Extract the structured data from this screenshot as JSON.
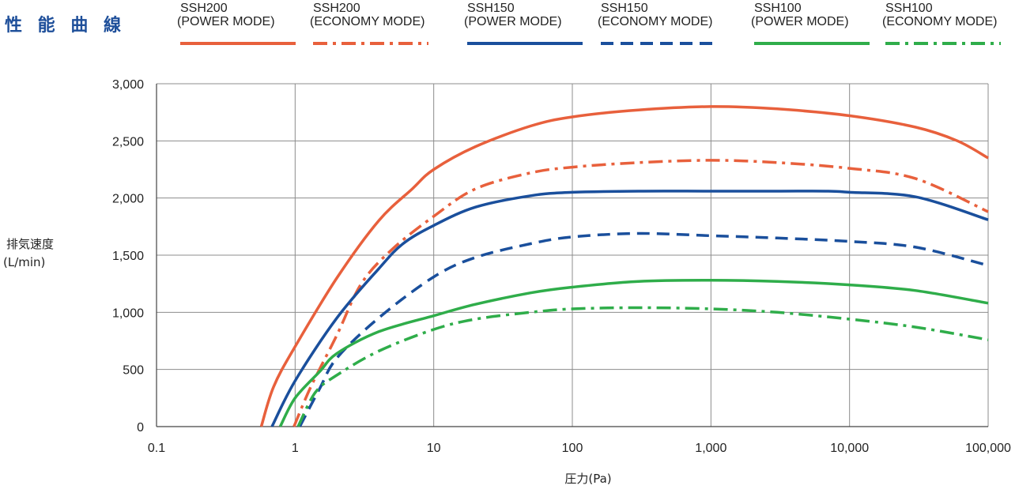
{
  "title": "性 能 曲 線",
  "chart_data": {
    "type": "line",
    "title": "性 能 曲 線",
    "xlabel": "圧力(Pa)",
    "ylabel_line1": "排気速度",
    "ylabel_line2": "(L/min)",
    "xscale": "log",
    "xlim": [
      0.1,
      100000
    ],
    "ylim": [
      0,
      3000
    ],
    "x_ticks": [
      0.1,
      1,
      10,
      100,
      1000,
      10000,
      100000
    ],
    "x_tick_labels": [
      "0.1",
      "1",
      "10",
      "100",
      "1,000",
      "10,000",
      "100,000"
    ],
    "y_ticks": [
      0,
      500,
      1000,
      1500,
      2000,
      2500,
      3000
    ],
    "y_tick_labels": [
      "0",
      "500",
      "1,000",
      "1,500",
      "2,000",
      "2,500",
      "3,000"
    ],
    "grid": "vertical lines at decades, horizontal lines at y ticks",
    "legend_position": "top",
    "series": [
      {
        "name": "SSH200",
        "mode": "(POWER MODE)",
        "color": "#e8603c",
        "dash": "solid",
        "points": [
          [
            0.57,
            0
          ],
          [
            0.7,
            350
          ],
          [
            1,
            700
          ],
          [
            2,
            1300
          ],
          [
            4,
            1800
          ],
          [
            7,
            2080
          ],
          [
            10,
            2250
          ],
          [
            20,
            2450
          ],
          [
            50,
            2630
          ],
          [
            100,
            2710
          ],
          [
            300,
            2770
          ],
          [
            1000,
            2800
          ],
          [
            3000,
            2780
          ],
          [
            10000,
            2720
          ],
          [
            30000,
            2620
          ],
          [
            60000,
            2500
          ],
          [
            100000,
            2350
          ]
        ]
      },
      {
        "name": "SSH200",
        "mode": "(ECONOMY MODE)",
        "color": "#e8603c",
        "dash": "dash-dot",
        "points": [
          [
            0.98,
            0
          ],
          [
            1.3,
            350
          ],
          [
            2,
            800
          ],
          [
            3,
            1250
          ],
          [
            5,
            1550
          ],
          [
            10,
            1840
          ],
          [
            20,
            2080
          ],
          [
            50,
            2220
          ],
          [
            100,
            2270
          ],
          [
            300,
            2310
          ],
          [
            1000,
            2330
          ],
          [
            3000,
            2310
          ],
          [
            10000,
            2260
          ],
          [
            30000,
            2170
          ],
          [
            100000,
            1880
          ]
        ]
      },
      {
        "name": "SSH150",
        "mode": "(POWER MODE)",
        "color": "#1a4f9c",
        "dash": "solid",
        "points": [
          [
            0.68,
            0
          ],
          [
            1,
            400
          ],
          [
            2,
            950
          ],
          [
            4,
            1380
          ],
          [
            6,
            1600
          ],
          [
            10,
            1760
          ],
          [
            20,
            1920
          ],
          [
            50,
            2020
          ],
          [
            100,
            2050
          ],
          [
            300,
            2060
          ],
          [
            1000,
            2060
          ],
          [
            3000,
            2060
          ],
          [
            7000,
            2060
          ],
          [
            10000,
            2050
          ],
          [
            30000,
            2010
          ],
          [
            100000,
            1810
          ]
        ]
      },
      {
        "name": "SSH150",
        "mode": "(ECONOMY MODE)",
        "color": "#1a4f9c",
        "dash": "dash",
        "points": [
          [
            1.08,
            0
          ],
          [
            1.5,
            330
          ],
          [
            2,
            600
          ],
          [
            4,
            950
          ],
          [
            10,
            1310
          ],
          [
            20,
            1480
          ],
          [
            50,
            1600
          ],
          [
            100,
            1660
          ],
          [
            300,
            1690
          ],
          [
            1000,
            1670
          ],
          [
            3000,
            1650
          ],
          [
            10000,
            1620
          ],
          [
            30000,
            1570
          ],
          [
            100000,
            1410
          ]
        ]
      },
      {
        "name": "SSH100",
        "mode": "(POWER MODE)",
        "color": "#2fad4a",
        "dash": "solid",
        "points": [
          [
            0.78,
            0
          ],
          [
            1,
            250
          ],
          [
            1.5,
            480
          ],
          [
            2,
            640
          ],
          [
            4,
            830
          ],
          [
            10,
            970
          ],
          [
            20,
            1070
          ],
          [
            50,
            1170
          ],
          [
            100,
            1220
          ],
          [
            300,
            1270
          ],
          [
            1000,
            1280
          ],
          [
            3000,
            1270
          ],
          [
            10000,
            1240
          ],
          [
            30000,
            1190
          ],
          [
            100000,
            1080
          ]
        ]
      },
      {
        "name": "SSH100",
        "mode": "(ECONOMY MODE)",
        "color": "#2fad4a",
        "dash": "dash-dot",
        "points": [
          [
            1.05,
            0
          ],
          [
            1.4,
            300
          ],
          [
            2,
            450
          ],
          [
            4,
            660
          ],
          [
            10,
            850
          ],
          [
            20,
            940
          ],
          [
            50,
            1000
          ],
          [
            100,
            1030
          ],
          [
            300,
            1040
          ],
          [
            1000,
            1030
          ],
          [
            3000,
            1000
          ],
          [
            10000,
            940
          ],
          [
            30000,
            870
          ],
          [
            100000,
            760
          ]
        ]
      }
    ]
  }
}
